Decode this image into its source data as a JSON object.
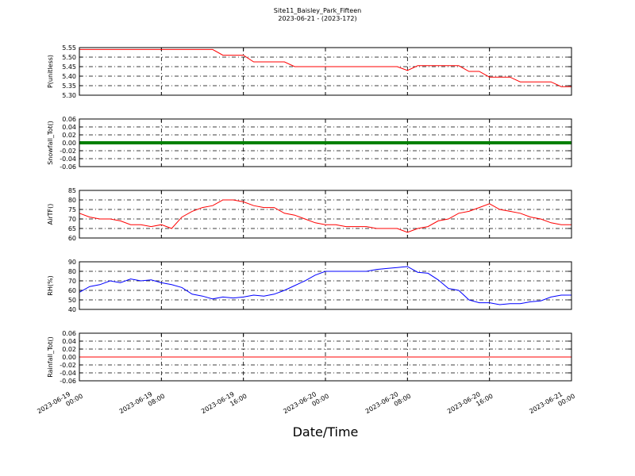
{
  "chart_data": {
    "type": "line",
    "title": "Site11_Baisley_Park_Fifteen",
    "subtitle": "2023-06-21 - (2023-172)",
    "xlabel": "Date/Time",
    "grid": true,
    "xlim": [
      "2023-06-19 00:00",
      "2023-06-21 00:00"
    ],
    "xticks": [
      "2023-06-19 00:00",
      "2023-06-19 08:00",
      "2023-06-19 16:00",
      "2023-06-20 00:00",
      "2023-06-20 08:00",
      "2023-06-20 16:00",
      "2023-06-21 00:00"
    ],
    "x": [
      "2023-06-19 00:00",
      "2023-06-19 01:00",
      "2023-06-19 02:00",
      "2023-06-19 03:00",
      "2023-06-19 04:00",
      "2023-06-19 05:00",
      "2023-06-19 06:00",
      "2023-06-19 07:00",
      "2023-06-19 08:00",
      "2023-06-19 09:00",
      "2023-06-19 10:00",
      "2023-06-19 11:00",
      "2023-06-19 12:00",
      "2023-06-19 13:00",
      "2023-06-19 14:00",
      "2023-06-19 15:00",
      "2023-06-19 16:00",
      "2023-06-19 17:00",
      "2023-06-19 18:00",
      "2023-06-19 19:00",
      "2023-06-19 20:00",
      "2023-06-19 21:00",
      "2023-06-19 22:00",
      "2023-06-19 23:00",
      "2023-06-20 00:00",
      "2023-06-20 01:00",
      "2023-06-20 02:00",
      "2023-06-20 03:00",
      "2023-06-20 04:00",
      "2023-06-20 05:00",
      "2023-06-20 06:00",
      "2023-06-20 07:00",
      "2023-06-20 08:00",
      "2023-06-20 09:00",
      "2023-06-20 10:00",
      "2023-06-20 11:00",
      "2023-06-20 12:00",
      "2023-06-20 13:00",
      "2023-06-20 14:00",
      "2023-06-20 15:00",
      "2023-06-20 16:00",
      "2023-06-20 17:00",
      "2023-06-20 18:00",
      "2023-06-20 19:00",
      "2023-06-20 20:00",
      "2023-06-20 21:00",
      "2023-06-20 22:00",
      "2023-06-20 23:00",
      "2023-06-21 00:00"
    ],
    "panels": [
      {
        "ylabel": "P(unitless)",
        "ylim": [
          5.3,
          5.55
        ],
        "yticks": [
          {
            "value": 5.3,
            "label": "5.30"
          },
          5.35,
          {
            "value": 5.4,
            "label": "5.40"
          },
          5.45,
          {
            "value": 5.5,
            "label": "5.50"
          },
          5.55
        ],
        "series": [
          {
            "color": "#ff0000",
            "values": [
              5.54,
              5.54,
              5.54,
              5.54,
              5.54,
              5.54,
              5.54,
              5.54,
              5.54,
              5.54,
              5.54,
              5.54,
              5.54,
              5.54,
              5.51,
              5.51,
              5.51,
              5.475,
              5.475,
              5.475,
              5.475,
              5.45,
              5.45,
              5.45,
              5.45,
              5.45,
              5.45,
              5.45,
              5.45,
              5.45,
              5.45,
              5.45,
              5.43,
              5.455,
              5.455,
              5.455,
              5.455,
              5.455,
              5.425,
              5.425,
              5.395,
              5.395,
              5.395,
              5.37,
              5.37,
              5.37,
              5.37,
              5.345,
              5.345
            ]
          }
        ]
      },
      {
        "ylabel": "Snowfall_Tot()",
        "ylim": [
          -0.06,
          0.06
        ],
        "yticks": [
          -0.06,
          -0.04,
          -0.02,
          {
            "value": 0,
            "label": "0.00"
          },
          0.02,
          0.04,
          0.06
        ],
        "series": [
          {
            "color": "#008000",
            "width": 4,
            "values": [
              0,
              0,
              0,
              0,
              0,
              0,
              0,
              0,
              0,
              0,
              0,
              0,
              0,
              0,
              0,
              0,
              0,
              0,
              0,
              0,
              0,
              0,
              0,
              0,
              0,
              0,
              0,
              0,
              0,
              0,
              0,
              0,
              0,
              0,
              0,
              0,
              0,
              0,
              0,
              0,
              0,
              0,
              0,
              0,
              0,
              0,
              0,
              0,
              0
            ]
          }
        ]
      },
      {
        "ylabel": "AirTF()",
        "ylim": [
          60,
          85
        ],
        "yticks": [
          60,
          65,
          70,
          75,
          80,
          85
        ],
        "series": [
          {
            "color": "#ff0000",
            "values": [
              73,
              71,
              70,
              70,
              69,
              67,
              67,
              66,
              67,
              65,
              71,
              74,
              76,
              77,
              80,
              80,
              79,
              77,
              76,
              76,
              73,
              72,
              70,
              68,
              67,
              67,
              66,
              66,
              66,
              65,
              65,
              65,
              63,
              65,
              66,
              69,
              70,
              73,
              74,
              76,
              78,
              75,
              74,
              73,
              71,
              70,
              68,
              67,
              67
            ]
          }
        ]
      },
      {
        "ylabel": "RH(%)",
        "ylim": [
          40,
          90
        ],
        "yticks": [
          40,
          50,
          60,
          70,
          80,
          90
        ],
        "series": [
          {
            "color": "#0000ff",
            "values": [
              58,
              64,
              66,
              70,
              68,
              72,
              70,
              71,
              68,
              66,
              63,
              56,
              54,
              51,
              53,
              52,
              53,
              55,
              54,
              56,
              60,
              65,
              70,
              76,
              80,
              80,
              80,
              80,
              80,
              82,
              83,
              84,
              85,
              79,
              78,
              71,
              62,
              60,
              50,
              47,
              47,
              45,
              46,
              46,
              48,
              49,
              53,
              55,
              55
            ]
          }
        ]
      },
      {
        "ylabel": "Rainfall_Tot()",
        "ylim": [
          -0.06,
          0.06
        ],
        "yticks": [
          -0.06,
          -0.04,
          -0.02,
          {
            "value": 0,
            "label": "0.00"
          },
          0.02,
          0.04,
          0.06
        ],
        "series": [
          {
            "color": "#ff0000",
            "values": [
              0,
              0,
              0,
              0,
              0,
              0,
              0,
              0,
              0,
              0,
              0,
              0,
              0,
              0,
              0,
              0,
              0,
              0,
              0,
              0,
              0,
              0,
              0,
              0,
              0,
              0,
              0,
              0,
              0,
              0,
              0,
              0,
              0,
              0,
              0,
              0,
              0,
              0,
              0,
              0,
              0,
              0,
              0,
              0,
              0,
              0,
              0,
              0,
              0
            ]
          }
        ]
      }
    ]
  }
}
